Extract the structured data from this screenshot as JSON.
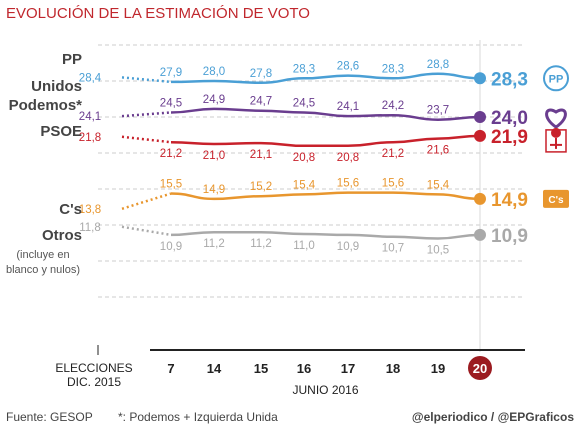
{
  "title": "EVOLUCIÓN DE LA ESTIMACIÓN DE VOTO",
  "footer": {
    "source": "Fuente: GESOP",
    "footnote": "*: Podemos + Izquierda Unida",
    "credit": "@elperiodico / @EPGraficos"
  },
  "chart_data": {
    "type": "line",
    "title": "EVOLUCIÓN DE LA ESTIMACIÓN DE VOTO",
    "baseline_label_lines": [
      "ELECCIONES",
      "DIC. 2015"
    ],
    "xlabel": "JUNIO 2016",
    "x": [
      "7",
      "14",
      "15",
      "16",
      "17",
      "18",
      "19",
      "20"
    ],
    "highlighted_x": "20",
    "ylim": [
      0,
      32
    ],
    "grid": true,
    "series": [
      {
        "key": "pp",
        "name": "PP",
        "label_lines": [
          "PP"
        ],
        "color": "#4a9fd5",
        "baseline": 28.4,
        "values": [
          27.9,
          28.0,
          27.8,
          28.3,
          28.6,
          28.3,
          28.8,
          28.3
        ],
        "icon": "pp-logo-icon",
        "icon_text": "PP"
      },
      {
        "key": "up",
        "name": "Unidos Podemos*",
        "label_lines": [
          "Unidos",
          "Podemos*"
        ],
        "color": "#6a3d8f",
        "baseline": 24.1,
        "values": [
          24.5,
          24.9,
          24.7,
          24.5,
          24.1,
          24.2,
          23.7,
          24.0
        ],
        "icon": "podemos-heart-icon",
        "icon_text": ""
      },
      {
        "key": "psoe",
        "name": "PSOE",
        "label_lines": [
          "PSOE"
        ],
        "color": "#c8212b",
        "baseline": 21.8,
        "values": [
          21.2,
          21.0,
          21.1,
          20.8,
          20.8,
          21.2,
          21.6,
          21.9
        ],
        "icon": "psoe-rose-icon",
        "icon_text": ""
      },
      {
        "key": "cs",
        "name": "C's",
        "label_lines": [
          "C's"
        ],
        "color": "#e8962e",
        "baseline": 13.8,
        "values": [
          15.5,
          14.9,
          15.2,
          15.4,
          15.6,
          15.6,
          15.4,
          14.9
        ],
        "icon": "cs-logo-icon",
        "icon_text": "C's"
      },
      {
        "key": "otros",
        "name": "Otros",
        "label_lines": [
          "Otros"
        ],
        "note_lines": [
          "(incluye en",
          "blanco y nulos)"
        ],
        "color": "#a9a9a9",
        "baseline": 11.8,
        "values": [
          10.9,
          11.2,
          11.2,
          11.0,
          10.9,
          10.7,
          10.5,
          10.9
        ],
        "icon": "",
        "icon_text": ""
      }
    ]
  }
}
